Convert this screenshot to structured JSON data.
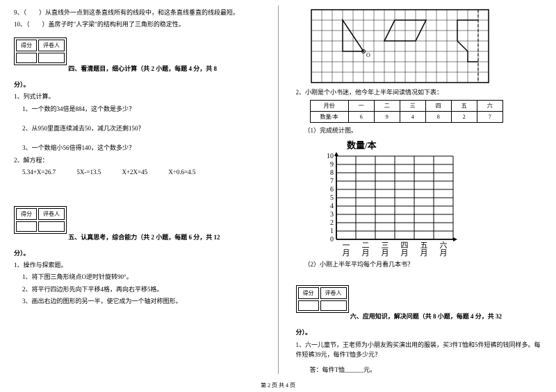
{
  "left": {
    "q9": "9、（　　）从直线外一点到这条直线所有的线段中，和这条直线垂直的线段最短。",
    "q10": "10、（　　）盖房子时\"人字梁\"的结构利用了三角形的稳定性。",
    "score_h1": "得分",
    "score_h2": "评卷人",
    "sec4_title": "四、看清题目，细心计算（共 2 小题，每题 4 分，共 8",
    "sec4_end": "分）。",
    "s4_1": "1、列式计算。",
    "s4_1a": "1、一个数的34倍是884，这个数是多少？",
    "s4_1b": "2、从950里面连续减去50，减几次还剩150？",
    "s4_1c": "3、一个数缩小56倍得140，这个数多少？",
    "s4_2": "2、解方程：",
    "eq1": "5.34+X=26.7",
    "eq2": "5X-=13.5",
    "eq3": "X+2X=45",
    "eq4": "X÷0.6=4.5",
    "sec5_title": "五、认真思考，综合能力（共 2 小题，每题 6 分，共 12",
    "sec5_end": "分）。",
    "s5_1": "1、操作与探索题。",
    "s5_1a": "1、将下图三角形绕点O逆时针旋转90°。",
    "s5_1b": "2、将平行四边形先向下平移4格，再向右平移5格。",
    "s5_1c": "3、画出右边的图形的另一半，使它成为一个轴对称图形。"
  },
  "right": {
    "grid": {
      "cols": 17,
      "rows": 7,
      "cell": 15
    },
    "s5_2": "2、小刚是个小书迷，他今年上半年间读情况如下表：",
    "table": {
      "headers": [
        "月份",
        "一",
        "二",
        "三",
        "四",
        "五",
        "六"
      ],
      "row_label": "数量/本",
      "values": [
        "6",
        "9",
        "4",
        "8",
        "2",
        "7"
      ]
    },
    "s5_2a": "（1）完成统计图。",
    "chart": {
      "ylabel": "数量/本",
      "yticks": [
        "10",
        "9",
        "8",
        "7",
        "6",
        "5",
        "4",
        "3",
        "2",
        "1",
        "0"
      ],
      "xticks": [
        "一月",
        "二月",
        "三月",
        "四月",
        "五月",
        "六月"
      ]
    },
    "s5_2b": "（2）小刚上半年平均每个月看几本书？",
    "score_h1": "得分",
    "score_h2": "评卷人",
    "sec6_title": "六、应用知识，解决问题（共 8 小题，每题 4 分，共 32",
    "sec6_end": "分）。",
    "s6_1": "1、六一儿童节，王老师为小朋友购买演出用的服装，买3件T恤和5件短裤的钱同样多。每件短裤39元，每件T恤多少元？",
    "s6_ans": "答：每件T恤______元。"
  },
  "footer": "第 2 页 共 4 页"
}
